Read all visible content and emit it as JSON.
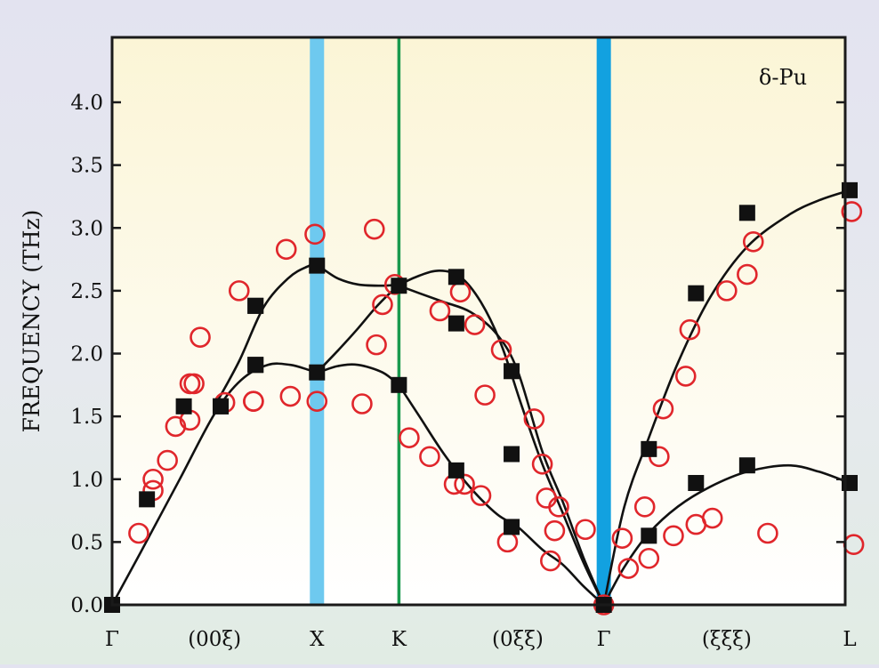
{
  "chart_data": {
    "type": "scatter",
    "title": "",
    "annotation": "δ-Pu",
    "ylabel": "FREQUENCY (THz)",
    "xlabel": "",
    "ylim": [
      0,
      4.5
    ],
    "yticks": [
      "0.0",
      "0.5",
      "1.0",
      "1.5",
      "2.0",
      "2.5",
      "3.0",
      "3.5",
      "4.0"
    ],
    "xlim": [
      0,
      4.6
    ],
    "x_points": [
      {
        "label": "Γ",
        "x": 0
      },
      {
        "label": "X",
        "x": 1.0
      },
      {
        "label": "K",
        "x": 1.4
      },
      {
        "label": "Γ",
        "x": 2.4
      },
      {
        "label": "L",
        "x": 3.6
      }
    ],
    "x_direction_labels": [
      {
        "label": "(00ξ)",
        "x": 0.5
      },
      {
        "label": "(0ξξ)",
        "x": 1.98
      },
      {
        "label": "(ξξξ)",
        "x": 3.0
      }
    ],
    "vertical_markers": [
      {
        "x": 1.0,
        "color": "#6ec9ef",
        "width": "wide"
      },
      {
        "x": 1.4,
        "color": "#1a9a4e",
        "width": "thin"
      },
      {
        "x": 2.4,
        "color": "#12a1e0",
        "width": "wide"
      }
    ],
    "colors": {
      "background_top": "#fbf5d6",
      "background_bottom": "#ffffff",
      "theory_curve": "#111111",
      "theory_marker": "#111111",
      "experiment_marker": "#e0262b"
    },
    "theory_curves": [
      {
        "x": [
          0,
          0.14,
          0.33,
          0.5,
          0.63,
          0.76,
          0.87,
          0.96,
          1.0,
          1.1,
          1.2,
          1.32,
          1.4
        ],
        "y": [
          0,
          0.42,
          1.0,
          1.52,
          1.79,
          1.91,
          1.91,
          1.87,
          1.85,
          1.9,
          1.91,
          1.85,
          1.75
        ]
      },
      {
        "x": [
          0.5,
          0.62,
          0.74,
          0.86,
          0.95,
          1.0,
          1.1,
          1.2,
          1.32,
          1.4
        ],
        "y": [
          1.58,
          1.94,
          2.37,
          2.6,
          2.69,
          2.7,
          2.6,
          2.55,
          2.54,
          2.55
        ]
      },
      {
        "x": [
          1.0,
          1.1,
          1.2,
          1.3,
          1.4,
          1.5,
          1.6,
          1.7,
          1.8,
          1.9,
          2.0,
          2.1,
          2.2,
          2.3,
          2.4
        ],
        "y": [
          1.85,
          2.02,
          2.2,
          2.39,
          2.54,
          2.62,
          2.66,
          2.61,
          2.41,
          2.07,
          1.58,
          1.12,
          0.73,
          0.34,
          0
        ]
      },
      {
        "x": [
          1.4,
          1.5,
          1.62,
          1.75,
          1.88,
          1.98,
          2.1,
          2.2,
          2.3,
          2.4
        ],
        "y": [
          2.54,
          2.48,
          2.41,
          2.33,
          2.15,
          1.86,
          1.22,
          0.82,
          0.38,
          0
        ]
      },
      {
        "x": [
          1.4,
          1.5,
          1.62,
          1.75,
          1.88,
          1.98,
          2.1,
          2.2,
          2.3,
          2.4
        ],
        "y": [
          1.75,
          1.5,
          1.2,
          0.93,
          0.72,
          0.62,
          0.44,
          0.32,
          0.15,
          0
        ]
      },
      {
        "x": [
          2.4,
          2.5,
          2.62,
          2.76,
          2.92,
          3.1,
          3.3,
          3.45,
          3.6
        ],
        "y": [
          0,
          0.78,
          1.33,
          1.92,
          2.45,
          2.85,
          3.1,
          3.22,
          3.3
        ]
      },
      {
        "x": [
          2.4,
          2.5,
          2.62,
          2.76,
          2.92,
          3.1,
          3.3,
          3.45,
          3.6
        ],
        "y": [
          0,
          0.3,
          0.57,
          0.78,
          0.94,
          1.06,
          1.11,
          1.06,
          0.97
        ]
      }
    ],
    "theory_points": {
      "x": [
        0,
        0.17,
        0.35,
        0.53,
        0.53,
        0.7,
        0.7,
        0.7,
        0.7,
        1.0,
        1.0,
        1.4,
        1.4,
        1.68,
        1.68,
        1.68,
        1.95,
        1.95,
        1.95,
        2.4,
        2.62,
        2.62,
        2.85,
        2.85,
        3.1,
        3.1,
        3.6,
        3.6
      ],
      "y": [
        0,
        0.84,
        1.58,
        1.58,
        1.58,
        2.38,
        2.38,
        1.91,
        1.91,
        2.7,
        1.85,
        2.54,
        1.75,
        2.61,
        2.24,
        1.07,
        1.86,
        1.2,
        0.62,
        0,
        1.24,
        0.55,
        2.48,
        0.97,
        3.12,
        1.11,
        3.3,
        0.97
      ]
    },
    "experiment_points": {
      "x": [
        0.13,
        0.2,
        0.2,
        0.27,
        0.31,
        0.38,
        0.38,
        0.4,
        0.43,
        0.55,
        0.62,
        0.69,
        0.69,
        0.85,
        0.87,
        0.99,
        1.0,
        1.22,
        1.28,
        1.29,
        1.32,
        1.38,
        1.45,
        1.55,
        1.6,
        1.67,
        1.7,
        1.72,
        1.77,
        1.8,
        1.82,
        1.9,
        1.93,
        2.06,
        2.1,
        2.12,
        2.14,
        2.16,
        2.18,
        2.31,
        2.4,
        2.49,
        2.52,
        2.6,
        2.62,
        2.67,
        2.69,
        2.74,
        2.8,
        2.82,
        2.85,
        2.93,
        3.0,
        3.1,
        3.13,
        3.2,
        3.61,
        3.62
      ],
      "y": [
        0.57,
        0.91,
        1.0,
        1.15,
        1.42,
        1.47,
        1.76,
        1.76,
        2.13,
        1.61,
        2.5,
        1.62,
        1.62,
        2.83,
        1.66,
        2.95,
        1.62,
        1.6,
        2.99,
        2.07,
        2.39,
        2.55,
        1.33,
        1.18,
        2.34,
        0.96,
        2.49,
        0.96,
        2.23,
        0.87,
        1.67,
        2.03,
        0.5,
        1.48,
        1.12,
        0.85,
        0.35,
        0.59,
        0.78,
        0.6,
        0,
        0.53,
        0.29,
        0.78,
        0.37,
        1.18,
        1.56,
        0.55,
        1.82,
        2.19,
        0.64,
        0.69,
        2.5,
        2.63,
        2.89,
        0.57,
        3.13,
        0.48
      ]
    }
  }
}
